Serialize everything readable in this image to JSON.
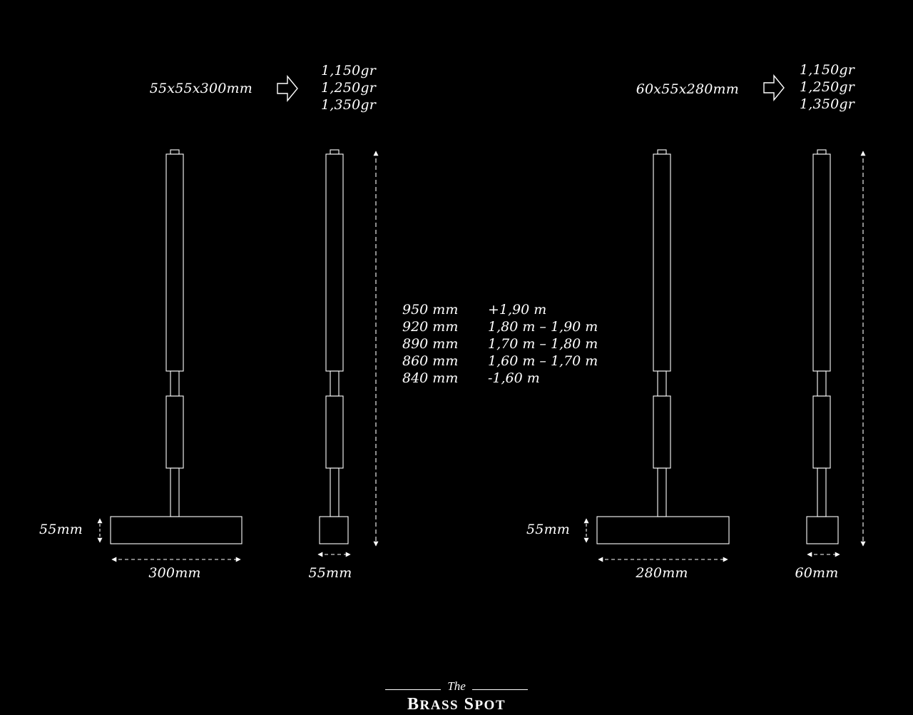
{
  "mallet_a": {
    "head_size": "55x55x300mm",
    "weights": [
      "1,150gr",
      "1,250gr",
      "1,350gr"
    ],
    "head_height": "55mm",
    "head_length": "300mm",
    "head_width": "55mm"
  },
  "mallet_b": {
    "head_size": "60x55x280mm",
    "weights": [
      "1,150gr",
      "1,250gr",
      "1,350gr"
    ],
    "head_height": "55mm",
    "head_length": "280mm",
    "head_width": "60mm"
  },
  "length_table": [
    {
      "shaft": "950 mm",
      "height": "+1,90 m"
    },
    {
      "shaft": "920 mm",
      "height": "1,80 m – 1,90 m"
    },
    {
      "shaft": "890 mm",
      "height": "1,70 m – 1,80 m"
    },
    {
      "shaft": "860 mm",
      "height": "1,60 m – 1,70 m"
    },
    {
      "shaft": "840 mm",
      "height": "-1,60 m"
    }
  ],
  "logo": {
    "the": "The",
    "name_b": "B",
    "name_rass": "RASS",
    "name_s": "S",
    "name_pot": "POT"
  },
  "colors": {
    "background": "#000000",
    "line": "#ffffff"
  },
  "icons": [
    "right-arrow-icon",
    "dimension-arrow-icon"
  ]
}
